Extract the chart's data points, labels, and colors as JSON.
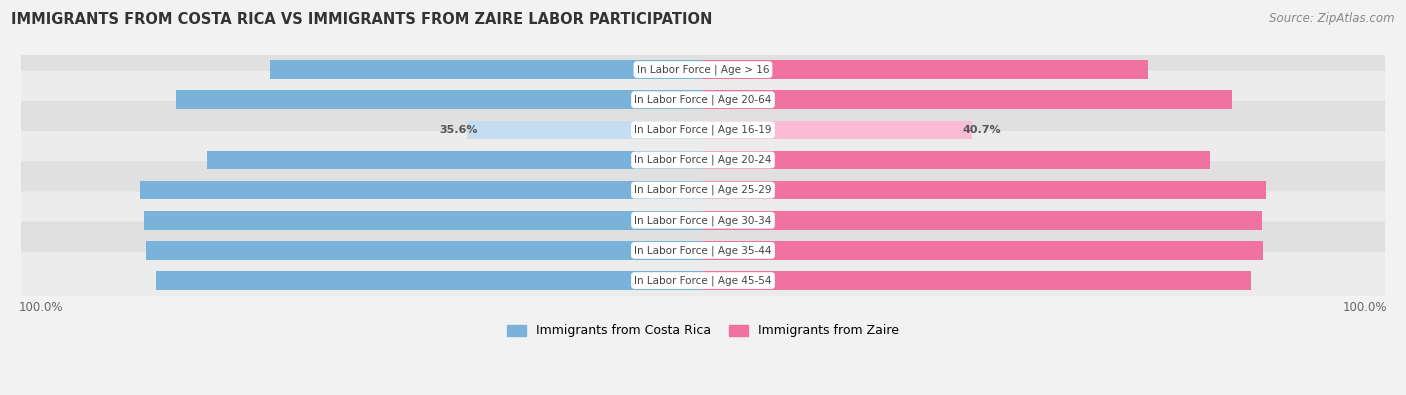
{
  "title": "IMMIGRANTS FROM COSTA RICA VS IMMIGRANTS FROM ZAIRE LABOR PARTICIPATION",
  "source": "Source: ZipAtlas.com",
  "categories": [
    "In Labor Force | Age > 16",
    "In Labor Force | Age 20-64",
    "In Labor Force | Age 16-19",
    "In Labor Force | Age 20-24",
    "In Labor Force | Age 25-29",
    "In Labor Force | Age 30-34",
    "In Labor Force | Age 35-44",
    "In Labor Force | Age 45-54"
  ],
  "costa_rica": [
    65.5,
    79.7,
    35.6,
    74.9,
    85.1,
    84.5,
    84.2,
    82.6
  ],
  "zaire": [
    67.2,
    79.9,
    40.7,
    76.6,
    85.1,
    84.5,
    84.6,
    82.8
  ],
  "color_cr": "#7ab3d9",
  "color_cr_light": "#c5ddf0",
  "color_zaire": "#f072a0",
  "color_zaire_light": "#f9bcd4",
  "bar_height": 0.62,
  "fig_bg": "#f2f2f2",
  "row_bg1": "#e0e0e0",
  "row_bg2": "#ececec",
  "legend_label_cr": "Immigrants from Costa Rica",
  "legend_label_zaire": "Immigrants from Zaire"
}
